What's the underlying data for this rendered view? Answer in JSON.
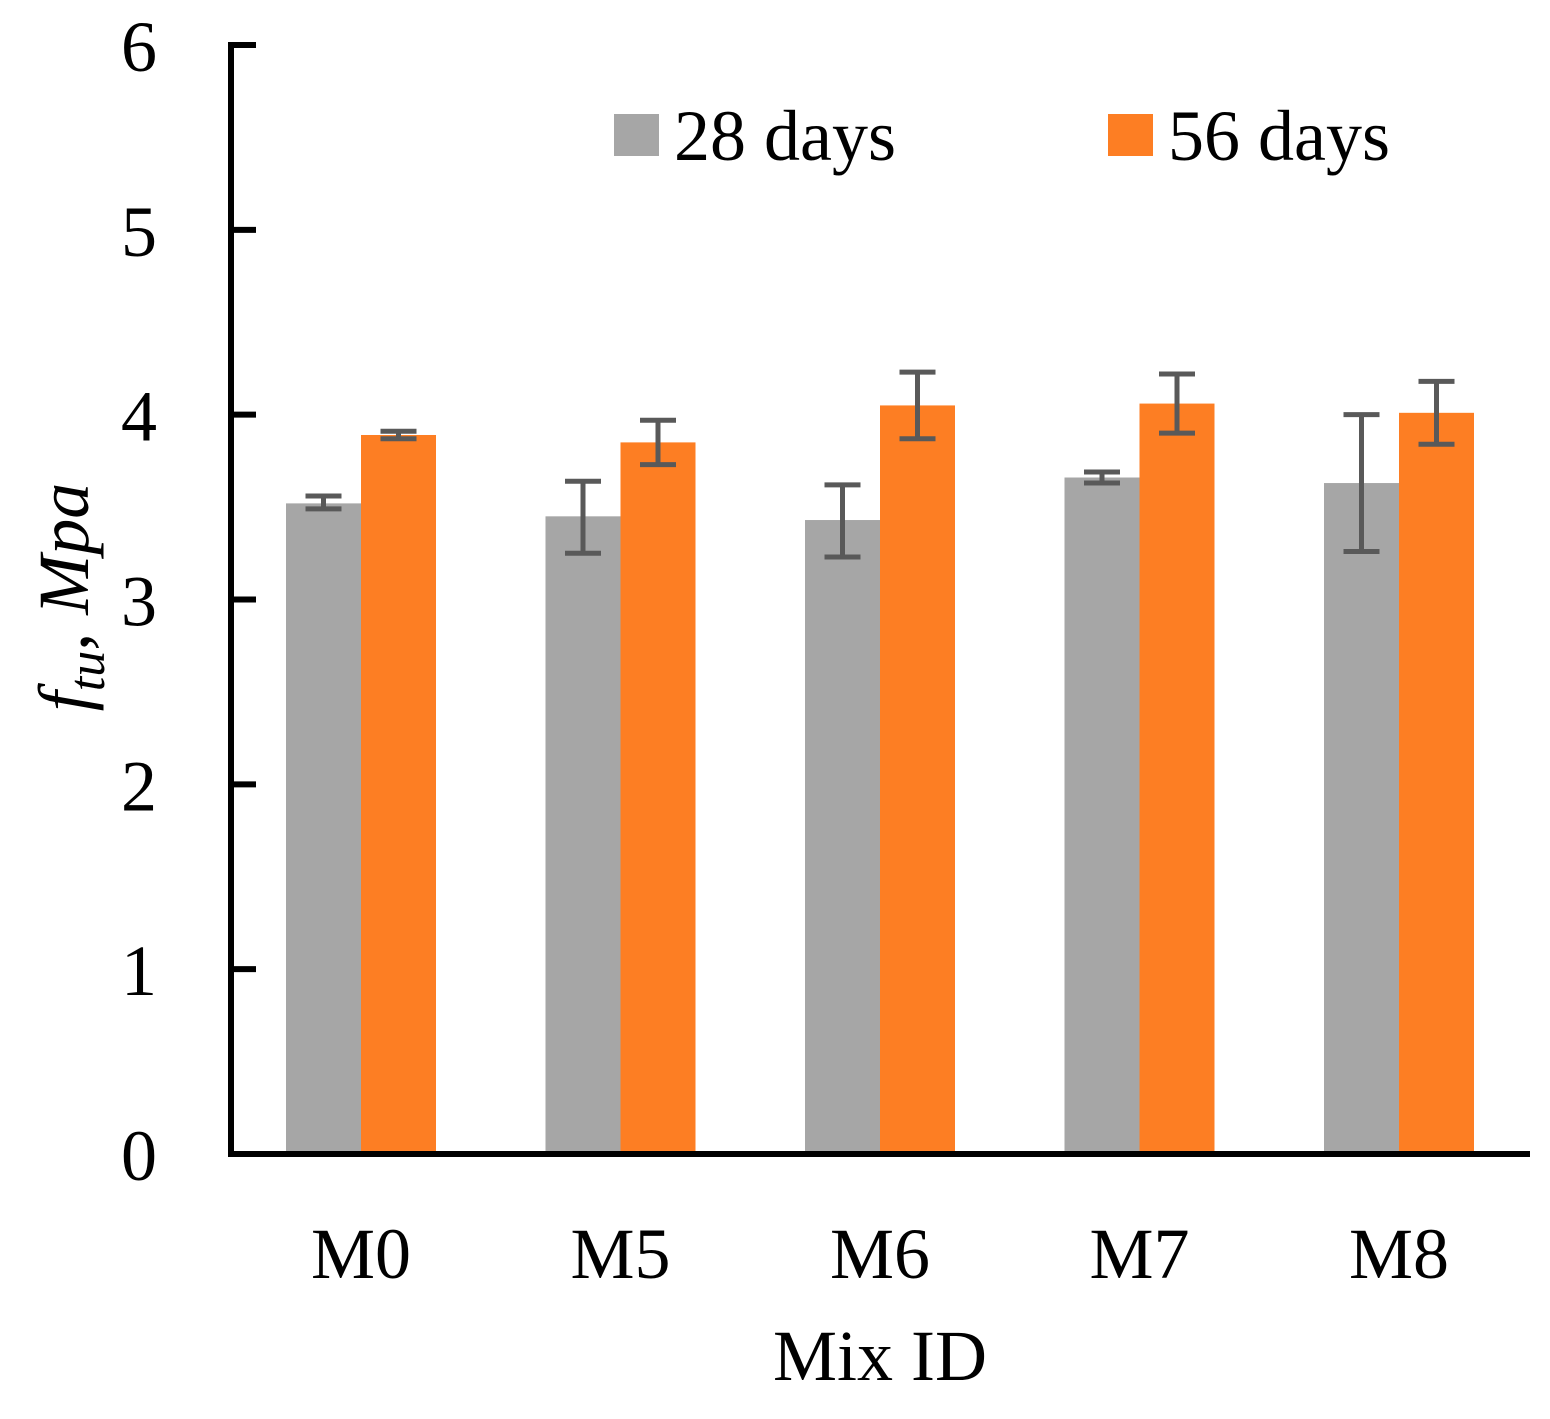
{
  "chart_data": {
    "type": "bar",
    "title": "",
    "xlabel": "Mix ID",
    "ylabel": {
      "symbol": "f",
      "subscript": "tu",
      "separator": ",",
      "unit": "Mpa"
    },
    "categories": [
      "M0",
      "M5",
      "M6",
      "M7",
      "M8"
    ],
    "ylim": [
      0,
      6
    ],
    "yticks": [
      "0",
      "1",
      "2",
      "3",
      "4",
      "5",
      "6"
    ],
    "grid": false,
    "legend_position": "top-right",
    "series": [
      {
        "name": "28 days",
        "color": "#a6a6a6",
        "values": [
          3.52,
          3.45,
          3.43,
          3.66,
          3.63
        ],
        "error_low": [
          3.49,
          3.25,
          3.23,
          3.63,
          3.26
        ],
        "error_high": [
          3.56,
          3.64,
          3.62,
          3.69,
          4.0
        ]
      },
      {
        "name": "56 days",
        "color": "#fd7e23",
        "values": [
          3.89,
          3.85,
          4.05,
          4.06,
          4.01
        ],
        "error_low": [
          3.87,
          3.73,
          3.87,
          3.9,
          3.84
        ],
        "error_high": [
          3.91,
          3.97,
          4.23,
          4.22,
          4.18
        ]
      }
    ],
    "error_bar_color": "#595959",
    "axis_color": "#000000"
  }
}
